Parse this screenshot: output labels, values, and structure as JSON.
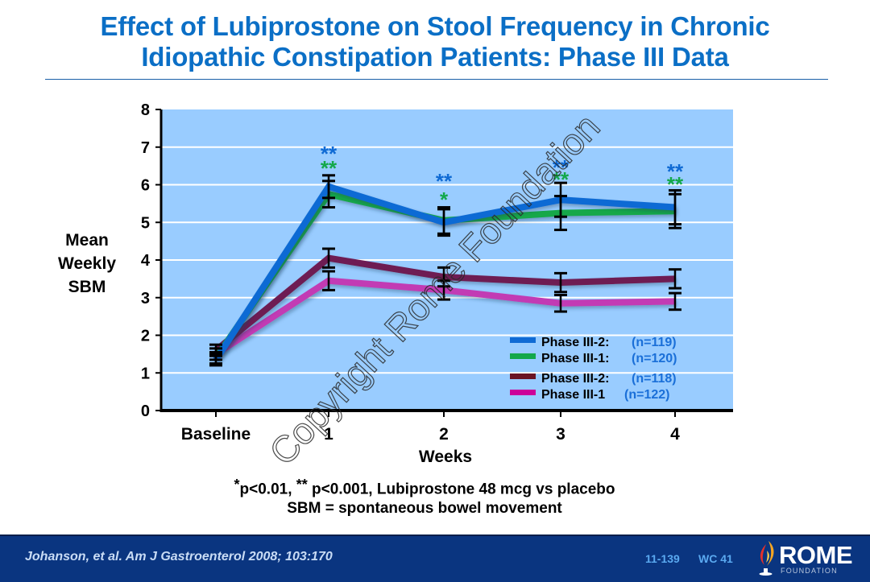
{
  "slide": {
    "title_line1": "Effect of Lubiprostone on Stool Frequency in Chronic",
    "title_line2": "Idiopathic Constipation Patients: Phase III Data",
    "ylabel_lines": [
      "Mean",
      "Weekly",
      "SBM"
    ],
    "footnote1_star1": "*",
    "footnote1_a": "p<0.01,  ",
    "footnote1_star2": "**",
    "footnote1_b": " p<0.001, Lubiprostone 48 mcg vs placebo",
    "footnote2": "SBM = spontaneous bowel movement",
    "watermark": "Copyright Rome Foundation"
  },
  "footer": {
    "citation": "Johanson, et al. Am J Gastroenterol 2008; 103:170",
    "slide_code": "11-139",
    "wc_code": "WC 41",
    "logo_word": "ROME",
    "logo_sub": "FOUNDATION"
  },
  "colors": {
    "plot_bg": "#99ccff",
    "title": "#0b6fc6",
    "footer_bg": "#0a3580"
  },
  "chart_data": {
    "type": "line",
    "title": "Effect of Lubiprostone on Stool Frequency in Chronic Idiopathic Constipation Patients: Phase III Data",
    "xlabel": "Weeks",
    "ylabel": "Mean Weekly SBM",
    "categories": [
      "Baseline",
      "1",
      "2",
      "3",
      "4"
    ],
    "ylim": [
      0,
      8
    ],
    "yticks": [
      0,
      1,
      2,
      3,
      4,
      5,
      6,
      7,
      8
    ],
    "grid": true,
    "legend_position": "bottom-right",
    "series": [
      {
        "name": "Phase III-2:",
        "n_label": "(n=119)",
        "color": "#0f6ad4",
        "values": [
          1.35,
          5.95,
          5.0,
          5.6,
          5.4
        ],
        "err": [
          0.15,
          0.3,
          0.35,
          0.45,
          0.45
        ]
      },
      {
        "name": "Phase III-1:",
        "n_label": "(n=120)",
        "color": "#13a84a",
        "values": [
          1.4,
          5.75,
          5.05,
          5.25,
          5.3
        ],
        "err": [
          0.15,
          0.35,
          0.35,
          0.45,
          0.45
        ]
      },
      {
        "name": "Phase III-2:",
        "n_label": "(n=118)",
        "color": "#6e1d52",
        "values": [
          1.6,
          4.05,
          3.55,
          3.4,
          3.5
        ],
        "err": [
          0.15,
          0.25,
          0.25,
          0.25,
          0.25
        ]
      },
      {
        "name": "Phase III-1",
        "n_label": " (n=122)",
        "color": "#c23ab4",
        "values": [
          1.5,
          3.45,
          3.2,
          2.85,
          2.9
        ],
        "err": [
          0.15,
          0.25,
          0.25,
          0.22,
          0.22
        ]
      }
    ],
    "legend_swatch_colors": [
      "#0f6ad4",
      "#13a84a",
      "#6b1424",
      "#cc0099"
    ],
    "annotations": [
      {
        "x": "1",
        "series": "Phase III-2 (n=119)",
        "text": "**",
        "color": "#0f6ad4"
      },
      {
        "x": "1",
        "series": "Phase III-1 (n=120)",
        "text": "**",
        "color": "#13a84a"
      },
      {
        "x": "2",
        "series": "Phase III-2 (n=119)",
        "text": "**",
        "color": "#0f6ad4"
      },
      {
        "x": "2",
        "series": "Phase III-1 (n=120)",
        "text": "*",
        "color": "#13a84a"
      },
      {
        "x": "3",
        "series": "Phase III-2 (n=119)",
        "text": "**",
        "color": "#0f6ad4"
      },
      {
        "x": "3",
        "series": "Phase III-1 (n=120)",
        "text": "**",
        "color": "#13a84a"
      },
      {
        "x": "4",
        "series": "Phase III-2 (n=119)",
        "text": "**",
        "color": "#0f6ad4"
      },
      {
        "x": "4",
        "series": "Phase III-1 (n=120)",
        "text": "**",
        "color": "#13a84a"
      }
    ]
  }
}
